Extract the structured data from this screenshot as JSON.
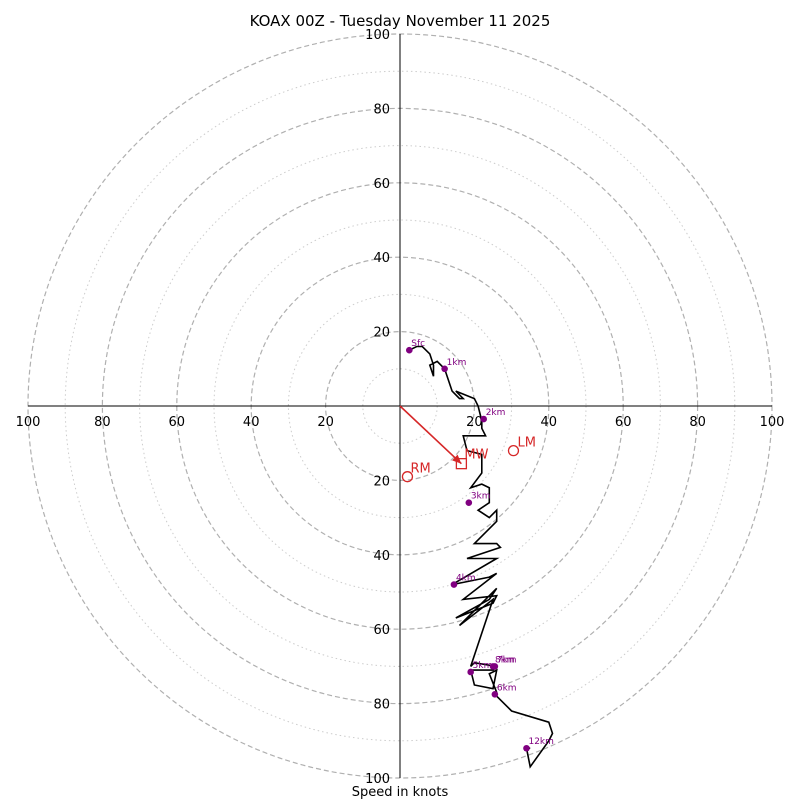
{
  "chart_data": {
    "type": "hodograph",
    "title": "KOAX 00Z - Tuesday November 11 2025",
    "xlabel": "Speed in knots",
    "max_speed": 100,
    "ring_major": [
      20,
      40,
      60,
      80,
      100
    ],
    "ring_minor": [
      10,
      30,
      50,
      70,
      90
    ],
    "tick_labels_x": [
      "100",
      "80",
      "60",
      "40",
      "20",
      "20",
      "40",
      "60",
      "80",
      "100"
    ],
    "tick_values_x": [
      -100,
      -80,
      -60,
      -40,
      -20,
      20,
      40,
      60,
      80,
      100
    ],
    "tick_labels_y_up": [
      "20",
      "40",
      "60",
      "80",
      "100"
    ],
    "tick_labels_y_down": [
      "20",
      "40",
      "60",
      "80",
      "100"
    ],
    "trace_uv": [
      [
        2.5,
        15
      ],
      [
        4.5,
        16
      ],
      [
        6,
        16
      ],
      [
        8,
        14
      ],
      [
        9,
        11
      ],
      [
        9,
        8
      ],
      [
        8,
        11
      ],
      [
        10,
        12
      ],
      [
        12,
        10
      ],
      [
        14,
        4
      ],
      [
        16,
        2
      ],
      [
        17,
        2
      ],
      [
        15,
        4
      ],
      [
        20,
        2
      ],
      [
        21,
        0
      ],
      [
        22,
        -4
      ],
      [
        22,
        -6
      ],
      [
        23,
        -8
      ],
      [
        17,
        -8
      ],
      [
        18,
        -12
      ],
      [
        22,
        -13
      ],
      [
        22,
        -16
      ],
      [
        22,
        -18
      ],
      [
        19,
        -22
      ],
      [
        22,
        -21
      ],
      [
        24,
        -22
      ],
      [
        24,
        -26
      ],
      [
        21,
        -28
      ],
      [
        24,
        -30
      ],
      [
        26,
        -28
      ],
      [
        26,
        -31
      ],
      [
        20,
        -37
      ],
      [
        26,
        -37
      ],
      [
        27,
        -38
      ],
      [
        18,
        -41
      ],
      [
        26,
        -41
      ],
      [
        14,
        -48
      ],
      [
        24,
        -46
      ],
      [
        26,
        -45
      ],
      [
        17,
        -52
      ],
      [
        26,
        -51
      ],
      [
        25,
        -53
      ],
      [
        15,
        -57
      ],
      [
        24,
        -52
      ],
      [
        26,
        -49
      ],
      [
        16,
        -59
      ],
      [
        25,
        -52
      ],
      [
        24,
        -55
      ],
      [
        19,
        -70
      ],
      [
        20,
        -69
      ],
      [
        26,
        -70
      ],
      [
        25,
        -71
      ],
      [
        19,
        -71
      ],
      [
        20,
        -75
      ],
      [
        25,
        -76
      ],
      [
        26,
        -71
      ],
      [
        24,
        -72
      ],
      [
        26,
        -77
      ],
      [
        26,
        -78
      ],
      [
        30,
        -82
      ],
      [
        40,
        -85
      ],
      [
        41,
        -88
      ],
      [
        40,
        -90
      ],
      [
        35,
        -97
      ],
      [
        34,
        -92
      ],
      [
        35,
        -92
      ]
    ],
    "height_markers": [
      {
        "label": "Sfc",
        "u": 2.5,
        "v": 15
      },
      {
        "label": "1km",
        "u": 12,
        "v": 10
      },
      {
        "label": "2km",
        "u": 22.5,
        "v": -3.5
      },
      {
        "label": "3km",
        "u": 18.5,
        "v": -26
      },
      {
        "label": "4km",
        "u": 14.5,
        "v": -48
      },
      {
        "label": "7km",
        "u": 25.5,
        "v": -70
      },
      {
        "label": "8km",
        "u": 25,
        "v": -70
      },
      {
        "label": "5km",
        "u": 19,
        "v": -71.5
      },
      {
        "label": "6km",
        "u": 25.5,
        "v": -77.5
      },
      {
        "label": "12km",
        "u": 34,
        "v": -92
      }
    ],
    "storm_motion": {
      "mean_wind": {
        "label": "MW",
        "u": 16.5,
        "v": -15.5
      },
      "right_mover": {
        "label": "RM",
        "u": 2,
        "v": -19
      },
      "left_mover": {
        "label": "LM",
        "u": 30.5,
        "v": -12
      }
    },
    "colors": {
      "trace": "#000000",
      "marker": "#800080",
      "storm": "#d62728",
      "ring_major": "#b0b0b0",
      "ring_minor": "#cccccc"
    }
  }
}
